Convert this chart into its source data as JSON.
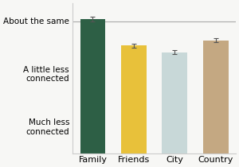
{
  "categories": [
    "Family",
    "Friends",
    "City",
    "Country"
  ],
  "values": [
    3.05,
    2.55,
    2.42,
    2.65
  ],
  "errors": [
    0.04,
    0.04,
    0.04,
    0.04
  ],
  "bar_colors": [
    "#2d5f45",
    "#e8c13a",
    "#c8d8d8",
    "#c4a882"
  ],
  "yticks": [
    1.0,
    2.0,
    3.0
  ],
  "yticklabels": [
    "Much less\nconnected",
    "A little less\nconnected",
    "About the same"
  ],
  "ylim": [
    0.5,
    3.35
  ],
  "hline_y": 3.0,
  "hline_color": "#aaaaaa",
  "background_color": "#f7f7f5",
  "bar_width": 0.62,
  "error_color": "#555555",
  "ytick_fontsize": 7.5,
  "xtick_fontsize": 8,
  "left_spine_color": "#cccccc"
}
